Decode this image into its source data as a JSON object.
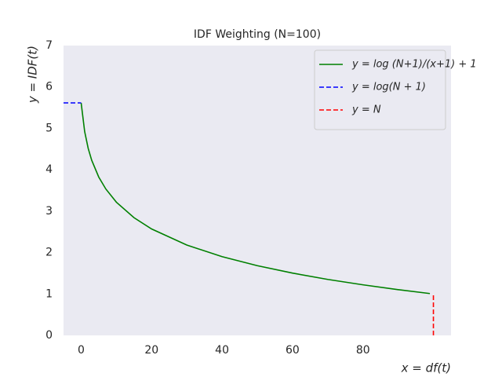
{
  "chart_data": {
    "type": "line",
    "title": "IDF Weighting (N=100)",
    "x_label": "x = df(t)",
    "y_label": "y = IDF(t)",
    "xlim": [
      -5,
      105
    ],
    "xticks": [
      0,
      20,
      40,
      60,
      80
    ],
    "ylim": [
      0,
      7
    ],
    "yticks": [
      0,
      1,
      2,
      3,
      4,
      5,
      6,
      7
    ],
    "grid": false,
    "legend": "upper-right",
    "series": [
      {
        "name": "y = log (N+1)/(x+1) + 1",
        "color": "#008000",
        "linestyle": "solid",
        "x": [
          0,
          1,
          2,
          3,
          5,
          7,
          10,
          15,
          20,
          30,
          40,
          50,
          60,
          70,
          80,
          90,
          99
        ],
        "values": [
          5.615,
          4.922,
          4.516,
          4.229,
          3.823,
          3.536,
          3.217,
          2.843,
          2.57,
          2.181,
          1.902,
          1.683,
          1.504,
          1.352,
          1.221,
          1.104,
          1.01
        ]
      },
      {
        "name": "y = log(N + 1)",
        "color": "#0000ff",
        "linestyle": "dashed",
        "x": [
          -5,
          0
        ],
        "values": [
          5.615,
          5.615
        ]
      },
      {
        "name": "y = N",
        "color": "#ff0000",
        "linestyle": "dashed",
        "x": [
          100,
          100
        ],
        "values": [
          0,
          1
        ]
      }
    ]
  }
}
